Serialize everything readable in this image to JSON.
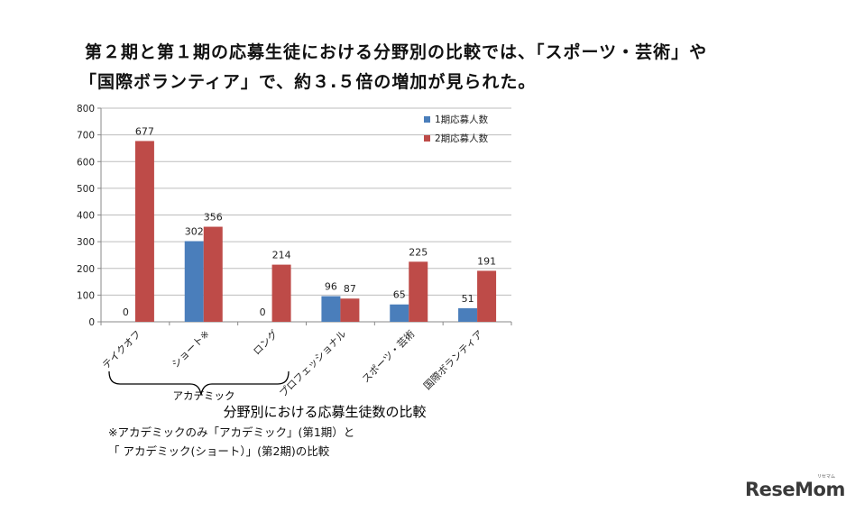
{
  "headline": {
    "line1": "第２期と第１期の応募生徒における分野別の比較では、「スポーツ・芸術」や",
    "line2": "「国際ボランティア」で、約３.５倍の増加が見られた。"
  },
  "chart_data": {
    "type": "bar",
    "title": "分野別における応募生徒数の比較",
    "categories": [
      "テイクオフ",
      "ショート※",
      "ロング",
      "プロフェッショナル",
      "スポーツ・芸術",
      "国際ボランティア"
    ],
    "series": [
      {
        "name": "1期応募人数",
        "values": [
          0,
          302,
          0,
          96,
          65,
          51
        ],
        "color": "#4a7ebb"
      },
      {
        "name": "2期応募人数",
        "values": [
          677,
          356,
          214,
          87,
          225,
          191
        ],
        "color": "#be4b48"
      }
    ],
    "data_labels": [
      [
        "",
        "302",
        "",
        "96",
        "65",
        "51"
      ],
      [
        "677",
        "356",
        "214",
        "87",
        "225",
        "191"
      ]
    ],
    "zero_labels": [
      "0",
      "",
      "0",
      "",
      "",
      ""
    ],
    "ylim": [
      0,
      800
    ],
    "yticks": [
      0,
      100,
      200,
      300,
      400,
      500,
      600,
      700,
      800
    ],
    "grid": true,
    "legend": "top-right",
    "group_label": "アカデミック",
    "xlabel": "",
    "ylabel": ""
  },
  "footnote": {
    "line1": "※アカデミックのみ「アカデミック」(第1期）と",
    "line2": "「 アカデミック(ショート）」(第2期)の比較"
  },
  "logo": {
    "text": "ReseMom",
    "sub": "リセマム"
  }
}
